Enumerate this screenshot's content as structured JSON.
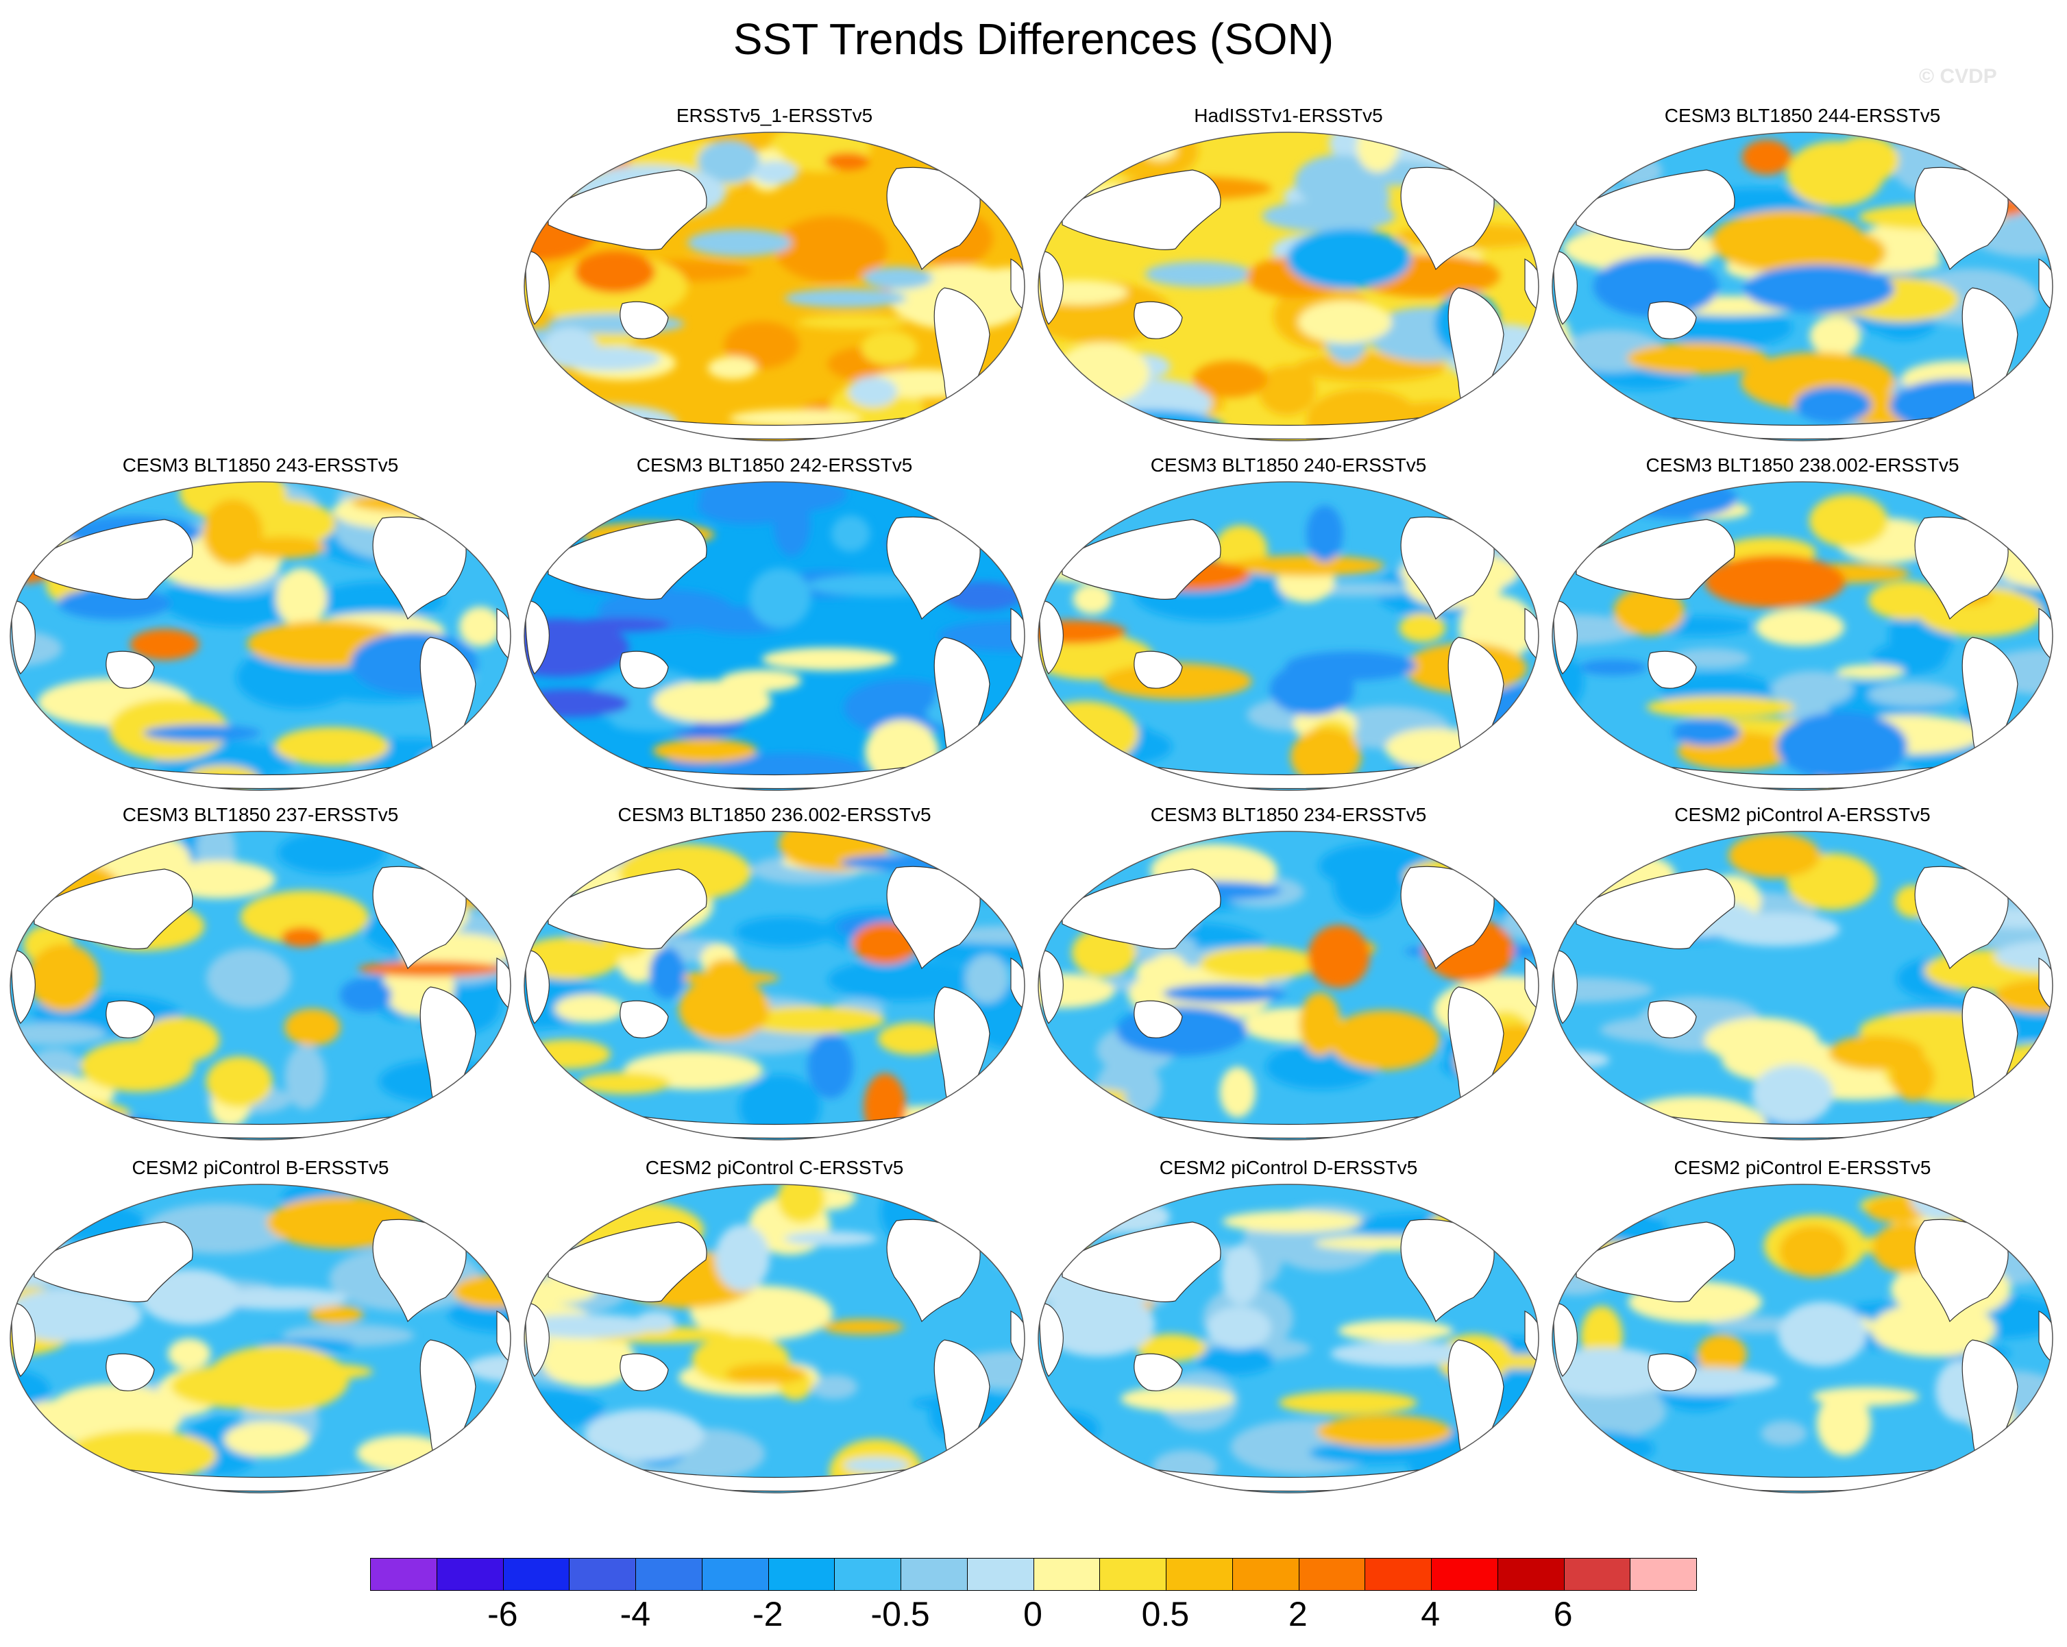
{
  "title": "SST Trends Differences (SON)",
  "watermark": "© CVDP",
  "panels": [
    {
      "title": "ERSSTv5_1-ERSSTv5",
      "regime": "warm"
    },
    {
      "title": "HadISSTv1-ERSSTv5",
      "regime": "mixed-warm"
    },
    {
      "title": "CESM3 BLT1850 244-ERSSTv5",
      "regime": "model"
    },
    {
      "title": "CESM3 BLT1850 243-ERSSTv5",
      "regime": "model"
    },
    {
      "title": "CESM3 BLT1850 242-ERSSTv5",
      "regime": "cold"
    },
    {
      "title": "CESM3 BLT1850 240-ERSSTv5",
      "regime": "model"
    },
    {
      "title": "CESM3 BLT1850 238.002-ERSSTv5",
      "regime": "model"
    },
    {
      "title": "CESM3 BLT1850 237-ERSSTv5",
      "regime": "model"
    },
    {
      "title": "CESM3 BLT1850 236.002-ERSSTv5",
      "regime": "model"
    },
    {
      "title": "CESM3 BLT1850 234-ERSSTv5",
      "regime": "model"
    },
    {
      "title": "CESM2 piControl A-ERSSTv5",
      "regime": "picontrol"
    },
    {
      "title": "CESM2 piControl B-ERSSTv5",
      "regime": "picontrol"
    },
    {
      "title": "CESM2 piControl C-ERSSTv5",
      "regime": "picontrol"
    },
    {
      "title": "CESM2 piControl D-ERSSTv5",
      "regime": "picontrol"
    },
    {
      "title": "CESM2 piControl E-ERSSTv5",
      "regime": "picontrol"
    }
  ],
  "colorbar": {
    "colors": [
      "#8b2be6",
      "#3c10e6",
      "#1428f0",
      "#3c5ae6",
      "#2f78ee",
      "#2392f5",
      "#0aaaf5",
      "#3cbef5",
      "#8ccdee",
      "#b9e1f5",
      "#fff8a0",
      "#fae132",
      "#fabe0a",
      "#fa9b00",
      "#fa7800",
      "#fa3c00",
      "#fa0000",
      "#c80000",
      "#d73c3c",
      "#ffb4b4"
    ],
    "labels": [
      "-6",
      "-4",
      "-2",
      "-0.5",
      "0",
      "0.5",
      "2",
      "4",
      "6"
    ]
  },
  "land_color": "#ffffff",
  "coast_color": "#333333"
}
